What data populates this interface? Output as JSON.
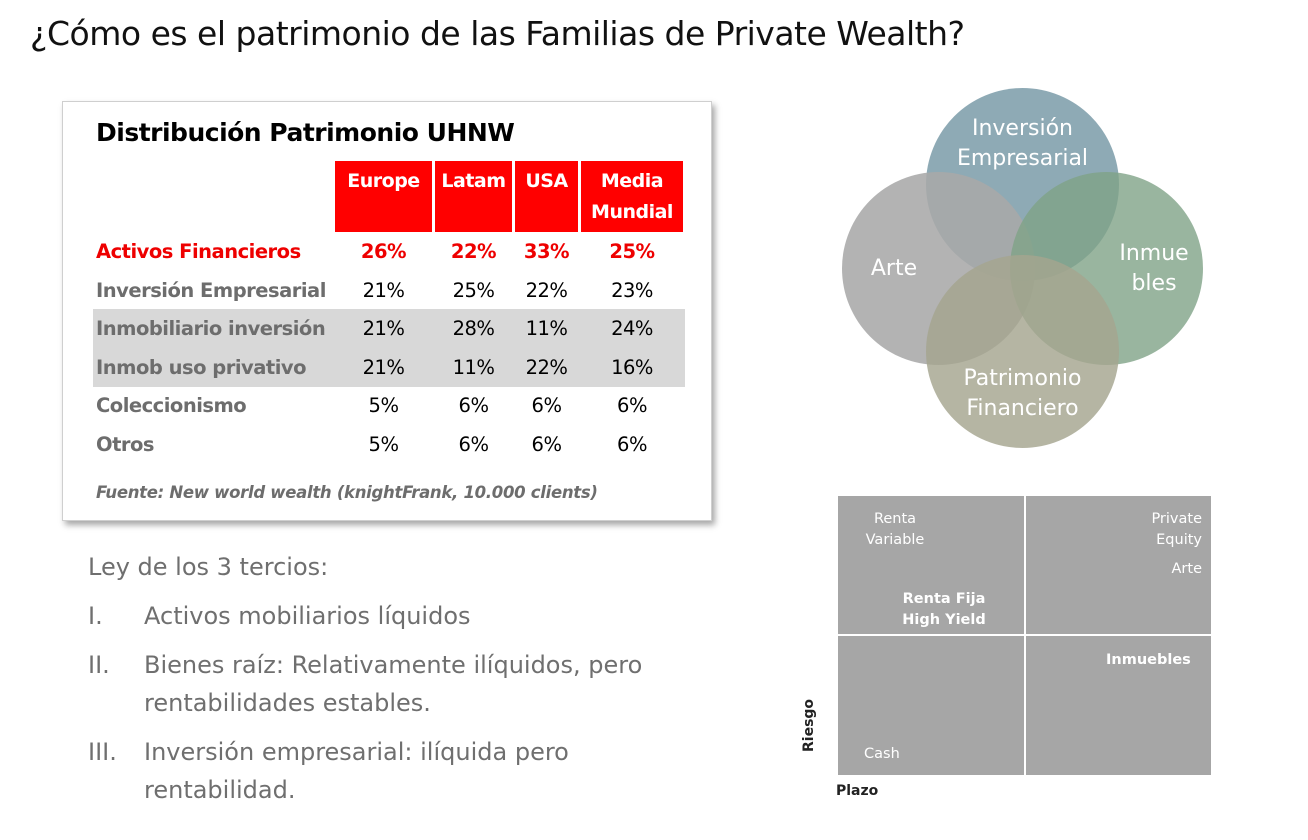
{
  "slide": {
    "title": "¿Cómo es el patrimonio de las Familias de Private Wealth?"
  },
  "table": {
    "title": "Distribución Patrimonio UHNW",
    "headers": [
      {
        "line1": "Europe",
        "line2": ""
      },
      {
        "line1": "Latam",
        "line2": ""
      },
      {
        "line1": "USA",
        "line2": ""
      },
      {
        "line1": "Media",
        "line2": "Mundial"
      }
    ],
    "rows": [
      {
        "label": "Activos Financieros",
        "values": [
          "26%",
          "22%",
          "33%",
          "25%"
        ],
        "highlight": true
      },
      {
        "label": "Inversión Empresarial",
        "values": [
          "21%",
          "25%",
          "22%",
          "23%"
        ]
      },
      {
        "label": "Inmobiliario inversión",
        "values": [
          "21%",
          "28%",
          "11%",
          "24%"
        ]
      },
      {
        "label": "Inmob uso privativo",
        "values": [
          "21%",
          "11%",
          "22%",
          "16%"
        ]
      },
      {
        "label": "Coleccionismo",
        "values": [
          "5%",
          "6%",
          "6%",
          "6%"
        ]
      },
      {
        "label": "Otros",
        "values": [
          "5%",
          "6%",
          "6%",
          "6%"
        ]
      }
    ],
    "source": "Fuente: New world wealth (knightFrank, 10.000 clients)",
    "colors": {
      "header_bg": "#ff0000",
      "highlight_text": "#ee0000",
      "band": "#d8d8d8"
    }
  },
  "law": {
    "title": "Ley de los 3 tercios:",
    "items": [
      {
        "num": "I.",
        "text": "Activos mobiliarios líquidos"
      },
      {
        "num": "II.",
        "text": "Bienes raíz: Relativamente ilíquidos, pero rentabilidades estables."
      },
      {
        "num": "III.",
        "text": "Inversión empresarial: ilíquida pero rentabilidad."
      }
    ]
  },
  "venn": {
    "top": {
      "line1": "Inversión",
      "line2": "Empresarial",
      "color": "#7e9eab"
    },
    "left": {
      "line1": "Arte",
      "color": "#a9a9a9"
    },
    "right": {
      "line1": "Inmue",
      "line2": "bles",
      "color": "#7fa287"
    },
    "bottom": {
      "line1": "Patrimonio",
      "line2": "Financiero",
      "color": "#a5a58f"
    }
  },
  "matrix": {
    "x_axis": "Plazo",
    "y_axis": "Riesgo",
    "labels": {
      "renta_variable": [
        "Renta",
        "Variable"
      ],
      "renta_fija": [
        "Renta Fija",
        "High Yield"
      ],
      "private_equity": [
        "Private",
        "Equity"
      ],
      "arte": "Arte",
      "inmuebles": "Inmuebles",
      "cash": "Cash"
    },
    "color": "#a6a6a6"
  }
}
